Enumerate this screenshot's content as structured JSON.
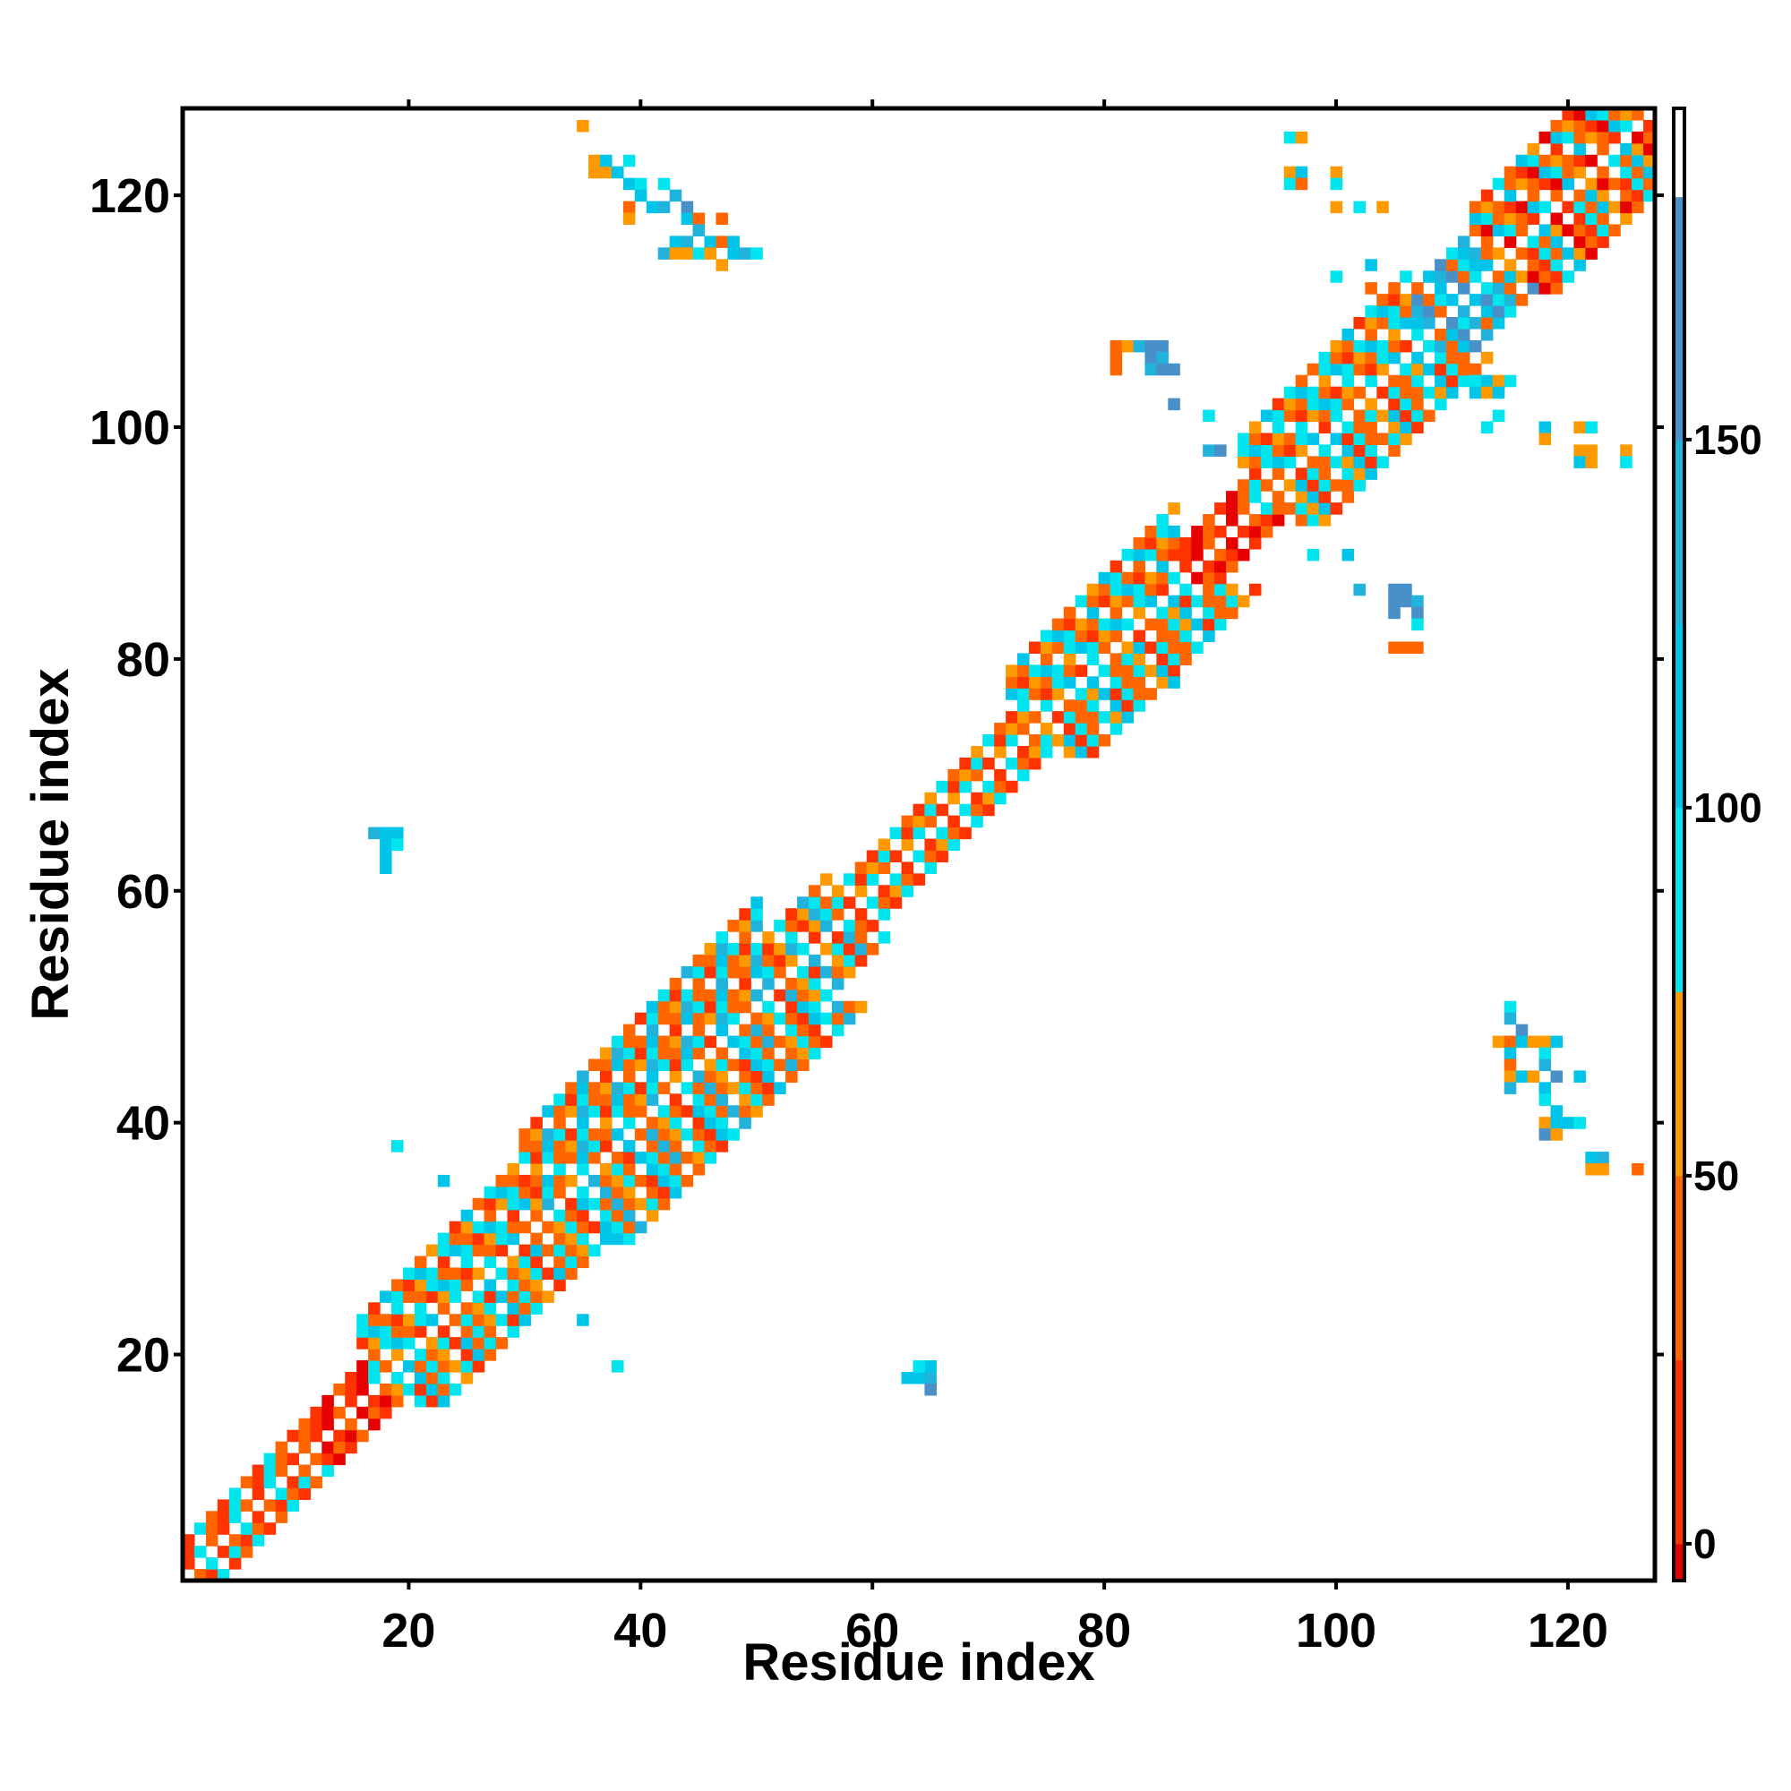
{
  "chart_data": {
    "type": "heatmap",
    "title": "",
    "xlabel": "Residue index",
    "ylabel": "Residue index",
    "xlim": [
      0.5,
      127.5
    ],
    "ylim": [
      0.5,
      127.5
    ],
    "x_ticks": [
      20,
      40,
      60,
      80,
      100,
      120
    ],
    "y_ticks": [
      20,
      40,
      60,
      80,
      100,
      120
    ],
    "grid": false,
    "colorbar": {
      "range": [
        -5,
        195
      ],
      "ticks": [
        0,
        50,
        100,
        150
      ],
      "stops": [
        {
          "from": -5,
          "to": 0,
          "color": "#e60000"
        },
        {
          "from": 0,
          "to": 25,
          "color": "#ff3300"
        },
        {
          "from": 25,
          "to": 50,
          "color": "#ff6600"
        },
        {
          "from": 50,
          "to": 75,
          "color": "#ff9900"
        },
        {
          "from": 75,
          "to": 100,
          "color": "#00e5ee"
        },
        {
          "from": 100,
          "to": 125,
          "color": "#00c5e8"
        },
        {
          "from": 125,
          "to": 150,
          "color": "#22b3dc"
        },
        {
          "from": 150,
          "to": 183,
          "color": "#4a90c8"
        },
        {
          "from": 183,
          "to": 195,
          "color": "#ffffff"
        }
      ]
    },
    "diagonal_segments": [
      {
        "from": 1,
        "to": 10,
        "band": 3,
        "pattern": [
          "#ff6600",
          "#ff3300",
          "#00e5ee"
        ]
      },
      {
        "from": 10,
        "to": 16,
        "band": 3,
        "pattern": [
          "#ff3300",
          "#e60000",
          "#ff6600"
        ]
      },
      {
        "from": 16,
        "to": 30,
        "band": 7,
        "pattern": [
          "#ff6600",
          "#ff9900",
          "#00e5ee",
          "#ff3300",
          "#00c5e8",
          "#ff6600",
          "#00e5ee"
        ]
      },
      {
        "from": 30,
        "to": 50,
        "band": 9,
        "pattern": [
          "#ff6600",
          "#ff9900",
          "#00e5ee",
          "#ff6600",
          "#ff3300",
          "#00c5e8",
          "#00e5ee",
          "#ff6600",
          "#22b3dc"
        ]
      },
      {
        "from": 50,
        "to": 56,
        "band": 5,
        "pattern": [
          "#ff6600",
          "#ff9900",
          "#00e5ee",
          "#ff3300",
          "#22b3dc"
        ]
      },
      {
        "from": 56,
        "to": 72,
        "band": 3,
        "pattern": [
          "#ff6600",
          "#ff3300",
          "#ff9900",
          "#00e5ee"
        ]
      },
      {
        "from": 72,
        "to": 86,
        "band": 7,
        "pattern": [
          "#ff6600",
          "#00e5ee",
          "#ff9900",
          "#00c5e8",
          "#ff3300",
          "#00e5ee",
          "#ff6600"
        ]
      },
      {
        "from": 86,
        "to": 92,
        "band": 3,
        "pattern": [
          "#ff3300",
          "#e60000",
          "#ff6600"
        ]
      },
      {
        "from": 92,
        "to": 106,
        "band": 7,
        "pattern": [
          "#ff6600",
          "#00e5ee",
          "#ff9900",
          "#00c5e8",
          "#ff3300",
          "#00e5ee",
          "#ff6600"
        ]
      },
      {
        "from": 106,
        "to": 112,
        "band": 5,
        "pattern": [
          "#00e5ee",
          "#22b3dc",
          "#ff6600",
          "#00c5e8",
          "#4a90c8"
        ]
      },
      {
        "from": 112,
        "to": 128,
        "band": 7,
        "pattern": [
          "#ff6600",
          "#ff3300",
          "#00e5ee",
          "#ff6600",
          "#00c5e8",
          "#ff9900",
          "#e60000"
        ]
      }
    ],
    "cells": [
      [
        35,
        126,
        "#ff9900"
      ],
      [
        36,
        123,
        "#ff9900"
      ],
      [
        36,
        122,
        "#ff9900"
      ],
      [
        37,
        122,
        "#ff9900"
      ],
      [
        37,
        123,
        "#00c5e8"
      ],
      [
        38,
        122,
        "#00c5e8"
      ],
      [
        39,
        123,
        "#00e5ee"
      ],
      [
        39,
        121,
        "#00c5e8"
      ],
      [
        40,
        121,
        "#00e5ee"
      ],
      [
        40,
        120,
        "#00c5e8"
      ],
      [
        41,
        119,
        "#00c5e8"
      ],
      [
        42,
        119,
        "#22b3dc"
      ],
      [
        42,
        121,
        "#00e5ee"
      ],
      [
        39,
        119,
        "#ff6600"
      ],
      [
        39,
        118,
        "#ff9900"
      ],
      [
        43,
        120,
        "#22b3dc"
      ],
      [
        44,
        119,
        "#4a90c8"
      ],
      [
        44,
        118,
        "#00c5e8"
      ],
      [
        45,
        118,
        "#ff6600"
      ],
      [
        45,
        117,
        "#22b3dc"
      ],
      [
        43,
        116,
        "#00c5e8"
      ],
      [
        44,
        116,
        "#22b3dc"
      ],
      [
        46,
        116,
        "#00c5e8"
      ],
      [
        47,
        116,
        "#ff6600"
      ],
      [
        47,
        118,
        "#ff6600"
      ],
      [
        42,
        115,
        "#22b3dc"
      ],
      [
        43,
        115,
        "#ff9900"
      ],
      [
        44,
        115,
        "#ff9900"
      ],
      [
        45,
        115,
        "#00e5ee"
      ],
      [
        46,
        115,
        "#ff9900"
      ],
      [
        47,
        114,
        "#ff9900"
      ],
      [
        48,
        115,
        "#00c5e8"
      ],
      [
        49,
        115,
        "#22b3dc"
      ],
      [
        50,
        115,
        "#00e5ee"
      ],
      [
        48,
        116,
        "#00c5e8"
      ],
      [
        17,
        65,
        "#22b3dc"
      ],
      [
        18,
        65,
        "#00c5e8"
      ],
      [
        19,
        65,
        "#00c5e8"
      ],
      [
        18,
        64,
        "#00c5e8"
      ],
      [
        19,
        64,
        "#00e5ee"
      ],
      [
        18,
        63,
        "#00c5e8"
      ],
      [
        18,
        62,
        "#00c5e8"
      ],
      [
        19,
        38,
        "#00e5ee"
      ],
      [
        23,
        35,
        "#00c5e8"
      ],
      [
        35,
        23,
        "#00c5e8"
      ],
      [
        38,
        19,
        "#00e5ee"
      ],
      [
        63,
        18,
        "#00c5e8"
      ],
      [
        64,
        18,
        "#00c5e8"
      ],
      [
        65,
        18,
        "#22b3dc"
      ],
      [
        65,
        19,
        "#00c5e8"
      ],
      [
        64,
        19,
        "#00e5ee"
      ],
      [
        65,
        17,
        "#4a90c8"
      ],
      [
        96,
        125,
        "#00e5ee"
      ],
      [
        97,
        125,
        "#ff9900"
      ],
      [
        96,
        122,
        "#ff9900"
      ],
      [
        97,
        122,
        "#00c5e8"
      ],
      [
        96,
        121,
        "#00e5ee"
      ],
      [
        97,
        121,
        "#ff6600"
      ],
      [
        100,
        122,
        "#ff9900"
      ],
      [
        100,
        121,
        "#00e5ee"
      ],
      [
        100,
        119,
        "#ff9900"
      ],
      [
        102,
        119,
        "#00e5ee"
      ],
      [
        104,
        119,
        "#ff9900"
      ],
      [
        100,
        113,
        "#00e5ee"
      ],
      [
        103,
        114,
        "#00c5e8"
      ],
      [
        103,
        112,
        "#ff6600"
      ],
      [
        81,
        107,
        "#ff6600"
      ],
      [
        82,
        107,
        "#ff9900"
      ],
      [
        83,
        107,
        "#22b3dc"
      ],
      [
        84,
        107,
        "#4a90c8"
      ],
      [
        85,
        107,
        "#4a90c8"
      ],
      [
        81,
        106,
        "#ff6600"
      ],
      [
        84,
        106,
        "#4a90c8"
      ],
      [
        85,
        106,
        "#22b3dc"
      ],
      [
        81,
        105,
        "#ff6600"
      ],
      [
        84,
        105,
        "#22b3dc"
      ],
      [
        85,
        105,
        "#4a90c8"
      ],
      [
        86,
        105,
        "#4a90c8"
      ],
      [
        86,
        102,
        "#4a90c8"
      ],
      [
        89,
        101,
        "#00e5ee"
      ],
      [
        89,
        98,
        "#22b3dc"
      ],
      [
        90,
        98,
        "#4a90c8"
      ],
      [
        98,
        89,
        "#00e5ee"
      ],
      [
        101,
        89,
        "#00c5e8"
      ],
      [
        102,
        86,
        "#22b3dc"
      ],
      [
        105,
        86,
        "#4a90c8"
      ],
      [
        106,
        86,
        "#4a90c8"
      ],
      [
        105,
        85,
        "#4a90c8"
      ],
      [
        106,
        85,
        "#4a90c8"
      ],
      [
        107,
        85,
        "#22b3dc"
      ],
      [
        105,
        84,
        "#4a90c8"
      ],
      [
        107,
        84,
        "#4a90c8"
      ],
      [
        107,
        83,
        "#00e5ee"
      ],
      [
        105,
        81,
        "#ff6600"
      ],
      [
        106,
        81,
        "#ff6600"
      ],
      [
        107,
        81,
        "#ff6600"
      ],
      [
        86,
        78,
        "#00c5e8"
      ],
      [
        112,
        104,
        "#00e5ee"
      ],
      [
        113,
        104,
        "#00c5e8"
      ],
      [
        114,
        104,
        "#ff9900"
      ],
      [
        115,
        104,
        "#00e5ee"
      ],
      [
        112,
        103,
        "#00c5e8"
      ],
      [
        113,
        103,
        "#ff9900"
      ],
      [
        114,
        103,
        "#00c5e8"
      ],
      [
        114,
        101,
        "#00e5ee"
      ],
      [
        113,
        100,
        "#00e5ee"
      ],
      [
        118,
        100,
        "#00c5e8"
      ],
      [
        121,
        100,
        "#ff9900"
      ],
      [
        122,
        100,
        "#00e5ee"
      ],
      [
        121,
        98,
        "#ff9900"
      ],
      [
        122,
        98,
        "#ff9900"
      ],
      [
        121,
        97,
        "#00c5e8"
      ],
      [
        122,
        97,
        "#ff9900"
      ],
      [
        125,
        98,
        "#ff9900"
      ],
      [
        125,
        97,
        "#00e5ee"
      ],
      [
        118,
        99,
        "#ff9900"
      ],
      [
        115,
        50,
        "#00e5ee"
      ],
      [
        115,
        49,
        "#22b3dc"
      ],
      [
        116,
        48,
        "#4a90c8"
      ],
      [
        114,
        47,
        "#ff9900"
      ],
      [
        115,
        47,
        "#ff6600"
      ],
      [
        116,
        47,
        "#00c5e8"
      ],
      [
        117,
        47,
        "#ff9900"
      ],
      [
        118,
        47,
        "#ff9900"
      ],
      [
        119,
        47,
        "#00c5e8"
      ],
      [
        115,
        46,
        "#00c5e8"
      ],
      [
        118,
        46,
        "#00e5ee"
      ],
      [
        115,
        45,
        "#ff6600"
      ],
      [
        118,
        45,
        "#22b3dc"
      ],
      [
        115,
        44,
        "#ff9900"
      ],
      [
        116,
        44,
        "#00c5e8"
      ],
      [
        117,
        44,
        "#ff9900"
      ],
      [
        119,
        44,
        "#4a90c8"
      ],
      [
        121,
        44,
        "#00c5e8"
      ],
      [
        115,
        43,
        "#22b3dc"
      ],
      [
        118,
        43,
        "#00c5e8"
      ],
      [
        118,
        42,
        "#00e5ee"
      ],
      [
        119,
        41,
        "#00c5e8"
      ],
      [
        118,
        40,
        "#ff9900"
      ],
      [
        119,
        40,
        "#00c5e8"
      ],
      [
        120,
        40,
        "#00c5e8"
      ],
      [
        121,
        40,
        "#00e5ee"
      ],
      [
        118,
        39,
        "#4a90c8"
      ],
      [
        119,
        39,
        "#ff9900"
      ],
      [
        122,
        37,
        "#00c5e8"
      ],
      [
        122,
        36,
        "#ff9900"
      ],
      [
        123,
        37,
        "#22b3dc"
      ],
      [
        123,
        36,
        "#ff9900"
      ],
      [
        126,
        36,
        "#ff6600"
      ],
      [
        26,
        23,
        "#00c5e8"
      ],
      [
        27,
        23,
        "#00c5e8"
      ],
      [
        30,
        23,
        "#00e5ee"
      ],
      [
        29,
        24,
        "#00c5e8"
      ]
    ]
  }
}
